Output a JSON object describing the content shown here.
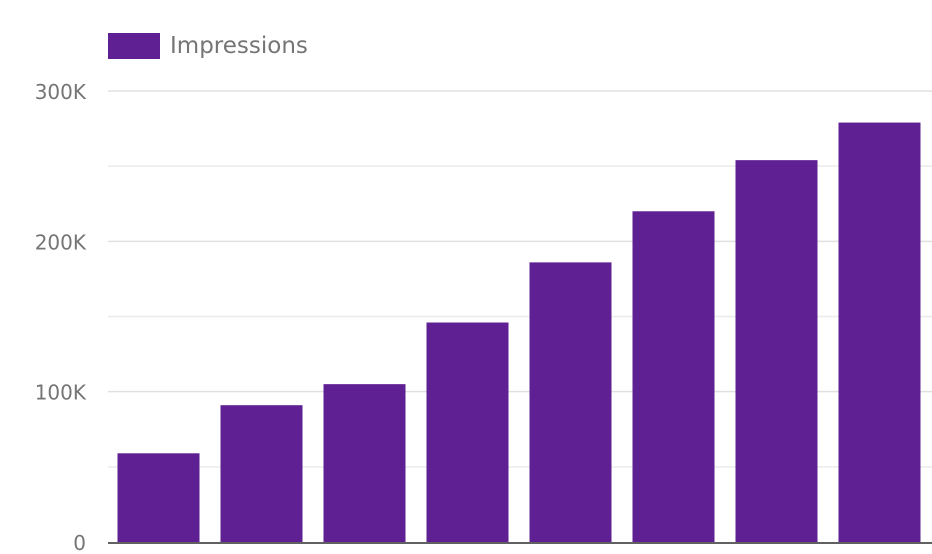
{
  "chart_data": {
    "type": "bar",
    "categories": [
      "",
      "",
      "",
      "",
      "",
      "",
      "",
      ""
    ],
    "series": [
      {
        "name": "Impressions",
        "color": "#5e2092",
        "values": [
          59000,
          91000,
          105000,
          146000,
          186000,
          220000,
          254000,
          279000
        ]
      }
    ],
    "title": "",
    "xlabel": "",
    "ylabel": "",
    "ylim": [
      0,
      300000
    ],
    "yticks": [
      {
        "value": 0,
        "label": "0"
      },
      {
        "value": 100000,
        "label": "100K"
      },
      {
        "value": 200000,
        "label": "200K"
      },
      {
        "value": 300000,
        "label": "300K"
      }
    ],
    "minor_gridlines": [
      50000,
      150000,
      250000
    ],
    "grid": true,
    "legend_position": "top-left"
  }
}
